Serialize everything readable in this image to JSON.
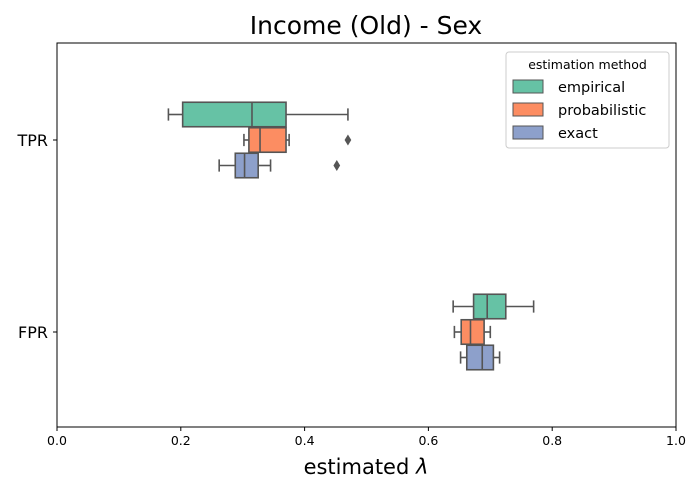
{
  "chart_data": {
    "type": "box",
    "orientation": "horizontal",
    "title": "Income (Old) - Sex",
    "xlabel_prefix": "estimated ",
    "xlabel_symbol": "λ",
    "ylabel": "",
    "xlim": [
      0.0,
      1.0
    ],
    "xticks": [
      "0.0",
      "0.2",
      "0.4",
      "0.6",
      "0.8",
      "1.0"
    ],
    "grid": false,
    "legend": {
      "title": "estimation method",
      "position": "top-right"
    },
    "categories": [
      "TPR",
      "FPR"
    ],
    "series": [
      {
        "name": "empirical",
        "color": "#66c2a5",
        "boxes": [
          {
            "whisker_low": 0.18,
            "q1": 0.203,
            "median": 0.315,
            "q3": 0.37,
            "whisker_high": 0.47,
            "outliers": []
          },
          {
            "whisker_low": 0.64,
            "q1": 0.673,
            "median": 0.695,
            "q3": 0.725,
            "whisker_high": 0.77,
            "outliers": []
          }
        ]
      },
      {
        "name": "probabilistic",
        "color": "#fc8d62",
        "boxes": [
          {
            "whisker_low": 0.302,
            "q1": 0.31,
            "median": 0.328,
            "q3": 0.37,
            "whisker_high": 0.375,
            "outliers": [
              0.47
            ]
          },
          {
            "whisker_low": 0.642,
            "q1": 0.653,
            "median": 0.668,
            "q3": 0.69,
            "whisker_high": 0.7,
            "outliers": []
          }
        ]
      },
      {
        "name": "exact",
        "color": "#8da0cb",
        "boxes": [
          {
            "whisker_low": 0.262,
            "q1": 0.288,
            "median": 0.303,
            "q3": 0.325,
            "whisker_high": 0.345,
            "outliers": [
              0.452
            ]
          },
          {
            "whisker_low": 0.652,
            "q1": 0.662,
            "median": 0.687,
            "q3": 0.705,
            "whisker_high": 0.715,
            "outliers": []
          }
        ]
      }
    ]
  }
}
